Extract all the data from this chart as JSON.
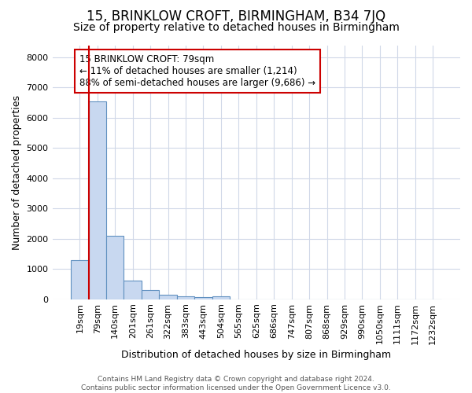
{
  "title": "15, BRINKLOW CROFT, BIRMINGHAM, B34 7JQ",
  "subtitle": "Size of property relative to detached houses in Birmingham",
  "xlabel": "Distribution of detached houses by size in Birmingham",
  "ylabel": "Number of detached properties",
  "categories": [
    "19sqm",
    "79sqm",
    "140sqm",
    "201sqm",
    "261sqm",
    "322sqm",
    "383sqm",
    "443sqm",
    "504sqm",
    "565sqm",
    "625sqm",
    "686sqm",
    "747sqm",
    "807sqm",
    "868sqm",
    "929sqm",
    "990sqm",
    "1050sqm",
    "1111sqm",
    "1172sqm",
    "1232sqm"
  ],
  "values": [
    1300,
    6550,
    2100,
    620,
    300,
    150,
    90,
    60,
    90,
    0,
    0,
    0,
    0,
    0,
    0,
    0,
    0,
    0,
    0,
    0,
    0
  ],
  "bar_color": "#c8d8f0",
  "bar_edge_color": "#6090c0",
  "vline_x": 0.5,
  "vline_color": "#cc0000",
  "annotation_text": "15 BRINKLOW CROFT: 79sqm\n← 11% of detached houses are smaller (1,214)\n88% of semi-detached houses are larger (9,686) →",
  "annotation_box_color": "#ffffff",
  "annotation_box_edge": "#cc0000",
  "ylim": [
    0,
    8400
  ],
  "yticks": [
    0,
    1000,
    2000,
    3000,
    4000,
    5000,
    6000,
    7000,
    8000
  ],
  "footer_text": "Contains HM Land Registry data © Crown copyright and database right 2024.\nContains public sector information licensed under the Open Government Licence v3.0.",
  "bg_color": "#ffffff",
  "grid_color": "#d0d8e8",
  "title_fontsize": 12,
  "subtitle_fontsize": 10,
  "axis_label_fontsize": 9,
  "tick_fontsize": 8
}
